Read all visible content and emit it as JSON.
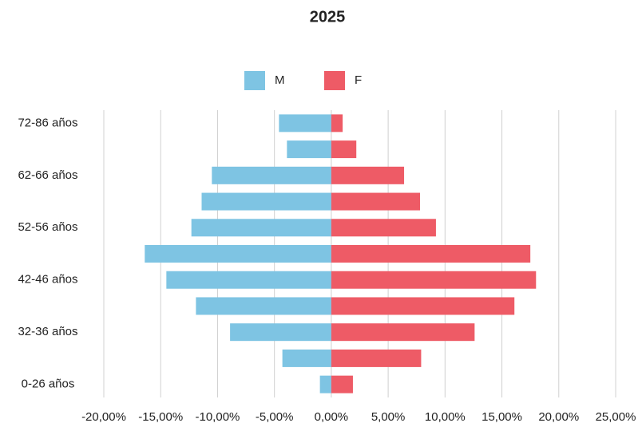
{
  "chart_data": {
    "type": "bar",
    "orientation": "horizontal",
    "title": "2025",
    "categories": [
      "72-86 años",
      null,
      "62-66 años",
      null,
      "52-56 años",
      null,
      "42-46 años",
      null,
      "32-36 años",
      null,
      "0-26 años"
    ],
    "series": [
      {
        "name": "M",
        "color": "#7ec4e3",
        "values": [
          -4.6,
          -3.9,
          -10.5,
          -11.4,
          -12.3,
          -16.4,
          -14.5,
          -11.9,
          -8.9,
          -4.3,
          -1.0
        ]
      },
      {
        "name": "F",
        "color": "#ee5b66",
        "values": [
          1.0,
          2.2,
          6.4,
          7.8,
          9.2,
          17.5,
          18.0,
          16.1,
          12.6,
          7.9,
          1.9
        ]
      }
    ],
    "xlim": [
      -20,
      25
    ],
    "xticks": [
      {
        "value": -20,
        "label": "-20,00%"
      },
      {
        "value": -15,
        "label": "-15,00%"
      },
      {
        "value": -10,
        "label": "-10,00%"
      },
      {
        "value": -5,
        "label": "-5,00%"
      },
      {
        "value": 0,
        "label": "0,00%"
      },
      {
        "value": 5,
        "label": "5,00%"
      },
      {
        "value": 10,
        "label": "10,00%"
      },
      {
        "value": 15,
        "label": "15,00%"
      },
      {
        "value": 20,
        "label": "20,00%"
      },
      {
        "value": 25,
        "label": "25,00%"
      }
    ],
    "grid": true,
    "legend": "top"
  }
}
